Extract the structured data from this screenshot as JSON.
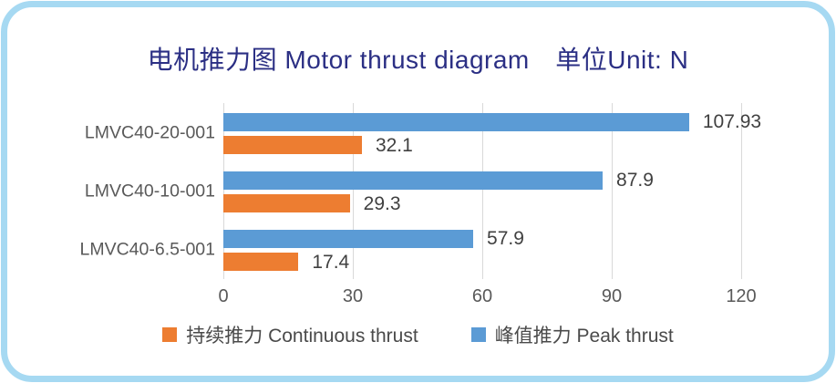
{
  "title": "电机推力图 Motor thrust diagram　单位Unit: N",
  "chart_data": {
    "type": "bar",
    "orientation": "horizontal",
    "title": "电机推力图 Motor thrust diagram",
    "unit_label": "单位Unit: N",
    "categories": [
      "LMVC40-20-001",
      "LMVC40-10-001",
      "LMVC40-6.5-001"
    ],
    "series": [
      {
        "name": "峰值推力 Peak thrust",
        "key": "peak",
        "color": "#5B9BD5",
        "values": [
          107.93,
          87.9,
          57.9
        ],
        "labels": [
          "107.93",
          "87.9",
          "57.9"
        ]
      },
      {
        "name": "持续推力 Continuous thrust",
        "key": "continuous",
        "color": "#ED7D31",
        "values": [
          32.1,
          29.3,
          17.4
        ],
        "labels": [
          "32.1",
          "29.3",
          "17.4"
        ]
      }
    ],
    "xticks": [
      "0",
      "30",
      "60",
      "90",
      "120"
    ],
    "xlim": [
      0,
      120
    ],
    "grid": "vertical-gridlines-only",
    "legend_position": "bottom",
    "legend": [
      {
        "label": "持续推力 Continuous thrust",
        "series_key": "continuous",
        "color": "#ED7D31"
      },
      {
        "label": "峰值推力 Peak thrust",
        "series_key": "peak",
        "color": "#5B9BD5"
      }
    ]
  },
  "colors": {
    "background": "#FFFFFF",
    "card_border": "#A6D9F2",
    "title_text": "#2B2F84",
    "gridline": "#D9D9D9",
    "tick_text": "#595959",
    "category_text": "#595959",
    "value_text": "#404040",
    "legend_text": "#4A4A4A"
  }
}
